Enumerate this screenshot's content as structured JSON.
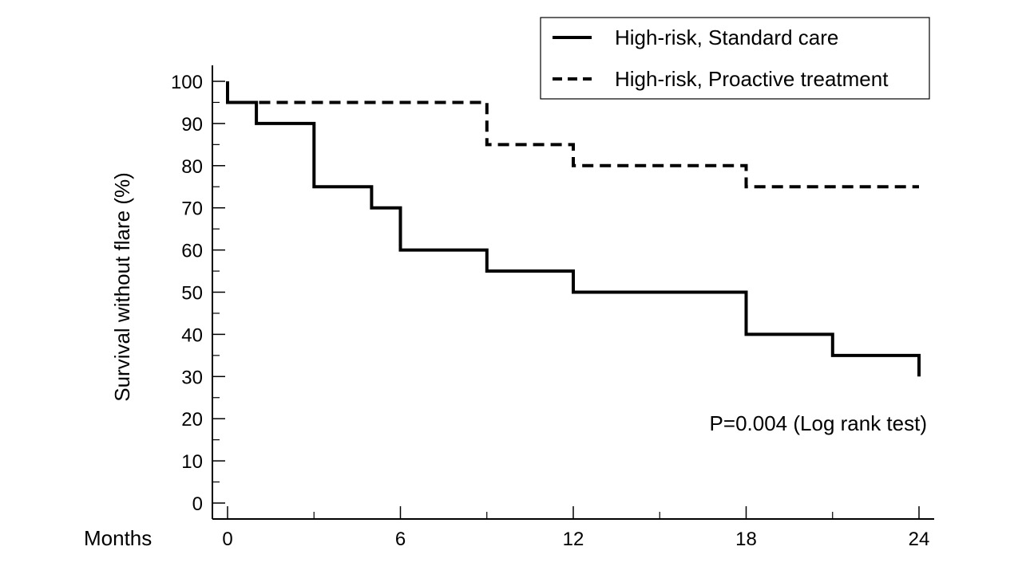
{
  "chart_data": {
    "type": "line",
    "step": true,
    "xlabel": "Months",
    "ylabel": "Survival without flare (%)",
    "xlim": [
      0,
      24
    ],
    "ylim": [
      0,
      100
    ],
    "x_ticks": [
      0,
      6,
      12,
      18,
      24
    ],
    "y_ticks": [
      0,
      10,
      20,
      30,
      40,
      50,
      60,
      70,
      80,
      90,
      100
    ],
    "grid": false,
    "legend_position": "top-right",
    "series": [
      {
        "name": "High-risk, Standard care",
        "line_style": "solid",
        "color": "#000000",
        "points": [
          [
            0,
            100
          ],
          [
            0,
            95
          ],
          [
            1,
            95
          ],
          [
            1,
            90
          ],
          [
            3,
            90
          ],
          [
            3,
            75
          ],
          [
            5,
            75
          ],
          [
            5,
            70
          ],
          [
            6,
            70
          ],
          [
            6,
            60
          ],
          [
            9,
            60
          ],
          [
            9,
            55
          ],
          [
            12,
            55
          ],
          [
            12,
            50
          ],
          [
            18,
            50
          ],
          [
            18,
            40
          ],
          [
            21,
            40
          ],
          [
            21,
            35
          ],
          [
            24,
            35
          ],
          [
            24,
            30
          ]
        ]
      },
      {
        "name": "High-risk, Proactive treatment",
        "line_style": "dashed",
        "color": "#000000",
        "points": [
          [
            0,
            100
          ],
          [
            0,
            95
          ],
          [
            9,
            95
          ],
          [
            9,
            85
          ],
          [
            12,
            85
          ],
          [
            12,
            80
          ],
          [
            18,
            80
          ],
          [
            18,
            75
          ],
          [
            24,
            75
          ]
        ]
      }
    ],
    "annotations": [
      {
        "text": "P=0.004 (Log rank test)",
        "position": "bottom-right"
      }
    ]
  }
}
